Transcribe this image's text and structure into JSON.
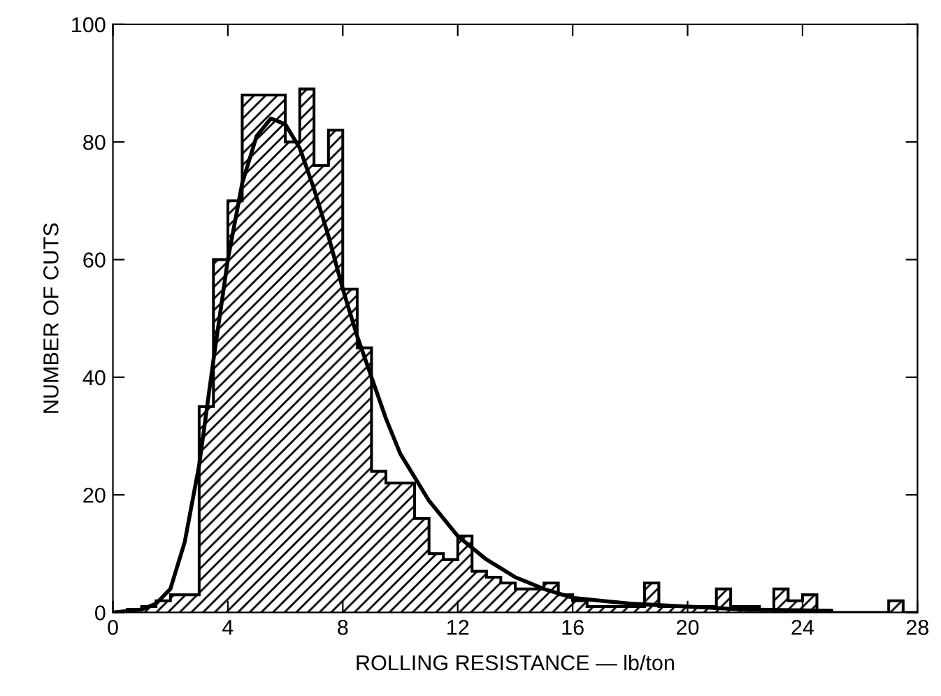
{
  "chart_data": {
    "type": "histogram",
    "xlabel": "ROLLING RESISTANCE — lb/ton",
    "ylabel": "NUMBER OF CUTS",
    "bins": [
      0,
      0.5,
      1,
      1.5,
      2,
      2.5,
      3,
      3.5,
      4,
      4.5,
      5,
      5.5,
      6,
      6.5,
      7,
      7.5,
      8,
      8.5,
      9,
      9.5,
      10,
      10.5,
      11,
      11.5,
      12,
      12.5,
      13,
      13.5,
      14,
      14.5,
      15,
      15.5,
      16,
      16.5,
      17,
      17.5,
      18,
      18.5,
      19,
      19.5,
      20,
      20.5,
      21,
      21.5,
      22,
      22.5,
      23,
      23.5,
      24,
      24.5,
      25,
      25.5,
      26,
      26.5,
      27,
      27.5,
      28
    ],
    "values": [
      0,
      0.5,
      1,
      2,
      3,
      3,
      35,
      60,
      70,
      88,
      88,
      88,
      80,
      89,
      76,
      82,
      55,
      45,
      24,
      22,
      22,
      16,
      10,
      9,
      13,
      7,
      6,
      5,
      4,
      4,
      5,
      3,
      2,
      1,
      1,
      1,
      1,
      5,
      1,
      1,
      1,
      1,
      4,
      1,
      1,
      0.5,
      4,
      2,
      3,
      0,
      0,
      0,
      0,
      0,
      2,
      0
    ],
    "color": "#000000",
    "series": [
      {
        "type": "line",
        "color": "#000000",
        "x": [
          0,
          1,
          1.5,
          2,
          2.5,
          3,
          3.5,
          4,
          4.5,
          5,
          5.5,
          6,
          6.5,
          7,
          7.5,
          8,
          8.5,
          9,
          9.5,
          10,
          11,
          12,
          13,
          14,
          15,
          16,
          17,
          18,
          20,
          22,
          25
        ],
        "values": [
          0,
          0.5,
          1.5,
          4,
          12,
          25,
          43,
          60,
          73,
          81,
          84,
          83,
          79,
          72,
          64,
          55,
          47,
          40,
          33,
          27,
          19,
          13,
          9,
          6,
          4,
          2.5,
          2,
          1.5,
          1,
          0.5,
          0.3
        ]
      }
    ],
    "xlim": [
      0,
      28
    ],
    "xticks": [
      0,
      4,
      8,
      12,
      16,
      20,
      24,
      28
    ],
    "ylim": [
      0,
      100
    ],
    "yticks": [
      0,
      20,
      40,
      60,
      80,
      100
    ],
    "grid": false
  }
}
